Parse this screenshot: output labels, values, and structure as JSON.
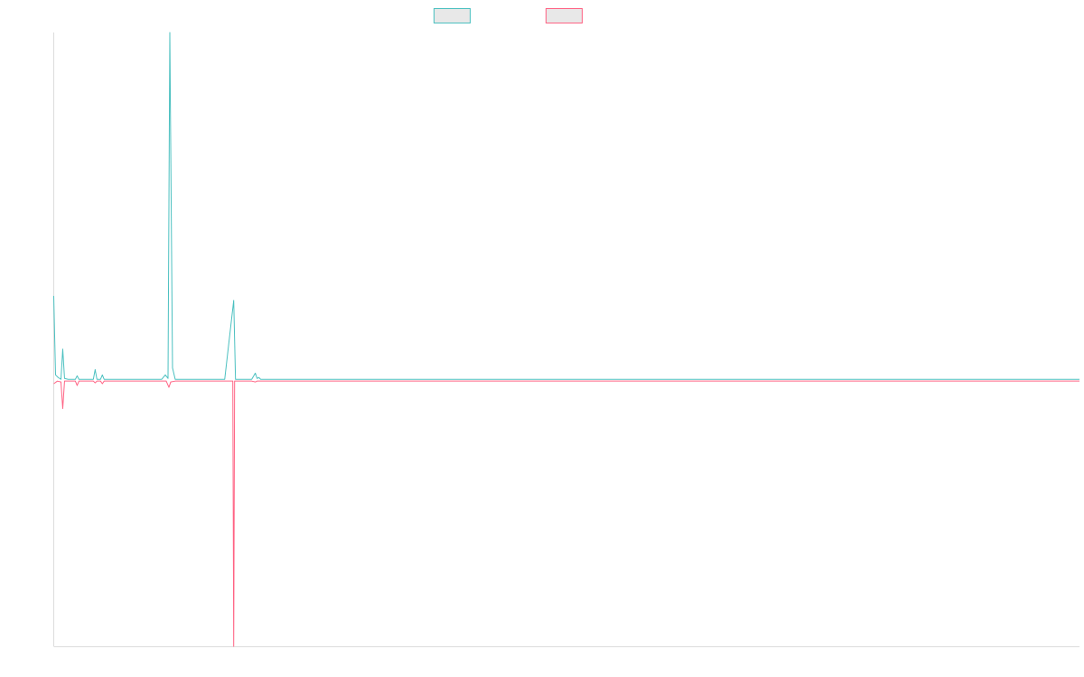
{
  "chart_data": {
    "type": "line",
    "title": "",
    "xlabel": "",
    "ylabel": "",
    "grid": false,
    "legend_position": "top-center",
    "xlim": [
      0,
      1140
    ],
    "ylim": [
      -300,
      392
    ],
    "colors": {
      "axis": "#dcdcdc",
      "legend_fill": "#e8e8e8"
    },
    "series": [
      {
        "color": "#4bc0c0",
        "points": [
          [
            0,
            95
          ],
          [
            2,
            6
          ],
          [
            5,
            3
          ],
          [
            8,
            1
          ],
          [
            10,
            35
          ],
          [
            12,
            2
          ],
          [
            16,
            1
          ],
          [
            20,
            1
          ],
          [
            24,
            1
          ],
          [
            26,
            5
          ],
          [
            28,
            1
          ],
          [
            32,
            1
          ],
          [
            40,
            1
          ],
          [
            44,
            1
          ],
          [
            46,
            12
          ],
          [
            48,
            1
          ],
          [
            52,
            1
          ],
          [
            54,
            6
          ],
          [
            56,
            1
          ],
          [
            60,
            1
          ],
          [
            80,
            1
          ],
          [
            92,
            1
          ],
          [
            110,
            1
          ],
          [
            120,
            1
          ],
          [
            124,
            6
          ],
          [
            127,
            2
          ],
          [
            129,
            392
          ],
          [
            132,
            14
          ],
          [
            135,
            1
          ],
          [
            160,
            1
          ],
          [
            190,
            1
          ],
          [
            200,
            90
          ],
          [
            202,
            1
          ],
          [
            210,
            1
          ],
          [
            220,
            1
          ],
          [
            224,
            8
          ],
          [
            226,
            2
          ],
          [
            228,
            3
          ],
          [
            230,
            1
          ],
          [
            238,
            1
          ],
          [
            260,
            1
          ],
          [
            280,
            1
          ],
          [
            300,
            1
          ],
          [
            400,
            1
          ],
          [
            600,
            1
          ],
          [
            800,
            1
          ],
          [
            1000,
            1
          ],
          [
            1140,
            1
          ]
        ]
      },
      {
        "color": "#ff6384",
        "points": [
          [
            0,
            -4
          ],
          [
            4,
            -1
          ],
          [
            8,
            -2
          ],
          [
            10,
            -32
          ],
          [
            12,
            -1
          ],
          [
            16,
            -1
          ],
          [
            20,
            -1
          ],
          [
            24,
            -1
          ],
          [
            26,
            -6
          ],
          [
            28,
            -1
          ],
          [
            32,
            -1
          ],
          [
            44,
            -1
          ],
          [
            46,
            -3
          ],
          [
            48,
            -1
          ],
          [
            52,
            -1
          ],
          [
            54,
            -4
          ],
          [
            56,
            -1
          ],
          [
            60,
            -1
          ],
          [
            80,
            -1
          ],
          [
            92,
            -1
          ],
          [
            110,
            -1
          ],
          [
            120,
            -1
          ],
          [
            125,
            -1
          ],
          [
            128,
            -8
          ],
          [
            130,
            -2
          ],
          [
            135,
            -1
          ],
          [
            160,
            -1
          ],
          [
            195,
            -1
          ],
          [
            199,
            -1
          ],
          [
            200,
            -300
          ],
          [
            201,
            -1
          ],
          [
            205,
            -1
          ],
          [
            220,
            -1
          ],
          [
            224,
            -2
          ],
          [
            226,
            -1
          ],
          [
            238,
            -1
          ],
          [
            260,
            -1
          ],
          [
            300,
            -1
          ],
          [
            400,
            -1
          ],
          [
            600,
            -1
          ],
          [
            800,
            -1
          ],
          [
            1000,
            -1
          ],
          [
            1140,
            -1
          ]
        ]
      }
    ]
  }
}
